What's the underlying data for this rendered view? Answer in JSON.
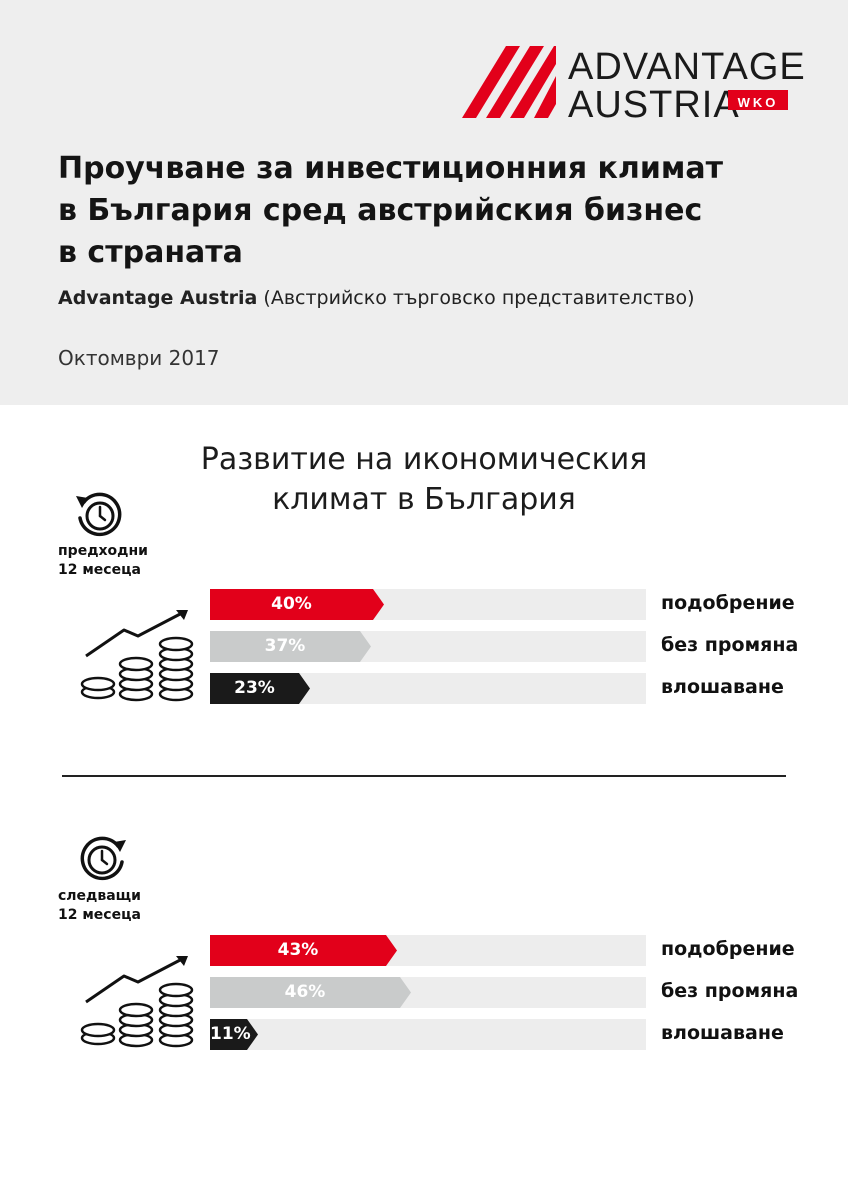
{
  "brand": {
    "line1": "ADVANTAGE",
    "line2": "AUSTRIA",
    "badge": "WKO",
    "color": "#e2001a"
  },
  "header": {
    "title_lines": [
      "Проучване за инвестиционния климат",
      "в България сред австрийския бизнес",
      "в страната"
    ],
    "subtitle_bold": "Advantage Austria",
    "subtitle_rest": " (Австрийско търговско представителство)",
    "date": "Октомври 2017"
  },
  "chart_data": {
    "type": "bar",
    "title_lines": [
      "Развитие на икономическия",
      "климат в България"
    ],
    "categories": [
      "подобрение",
      "без промяна",
      "влошаване"
    ],
    "unit": "%",
    "series": [
      {
        "name": "предходни 12 месеца",
        "values": [
          40,
          37,
          23
        ]
      },
      {
        "name": "следващи 12 месеца",
        "values": [
          43,
          46,
          11
        ]
      }
    ],
    "xlim": [
      0,
      100
    ],
    "colors": [
      "#e2001a",
      "#c9cbcb",
      "#1a1a1a"
    ],
    "track_color": "#ededed",
    "panels": [
      {
        "label_line1": "предходни",
        "label_line2": "12 месеца",
        "icon": "clock-back-icon"
      },
      {
        "label_line1": "следващи",
        "label_line2": "12 месеца",
        "icon": "clock-forward-icon"
      }
    ]
  }
}
